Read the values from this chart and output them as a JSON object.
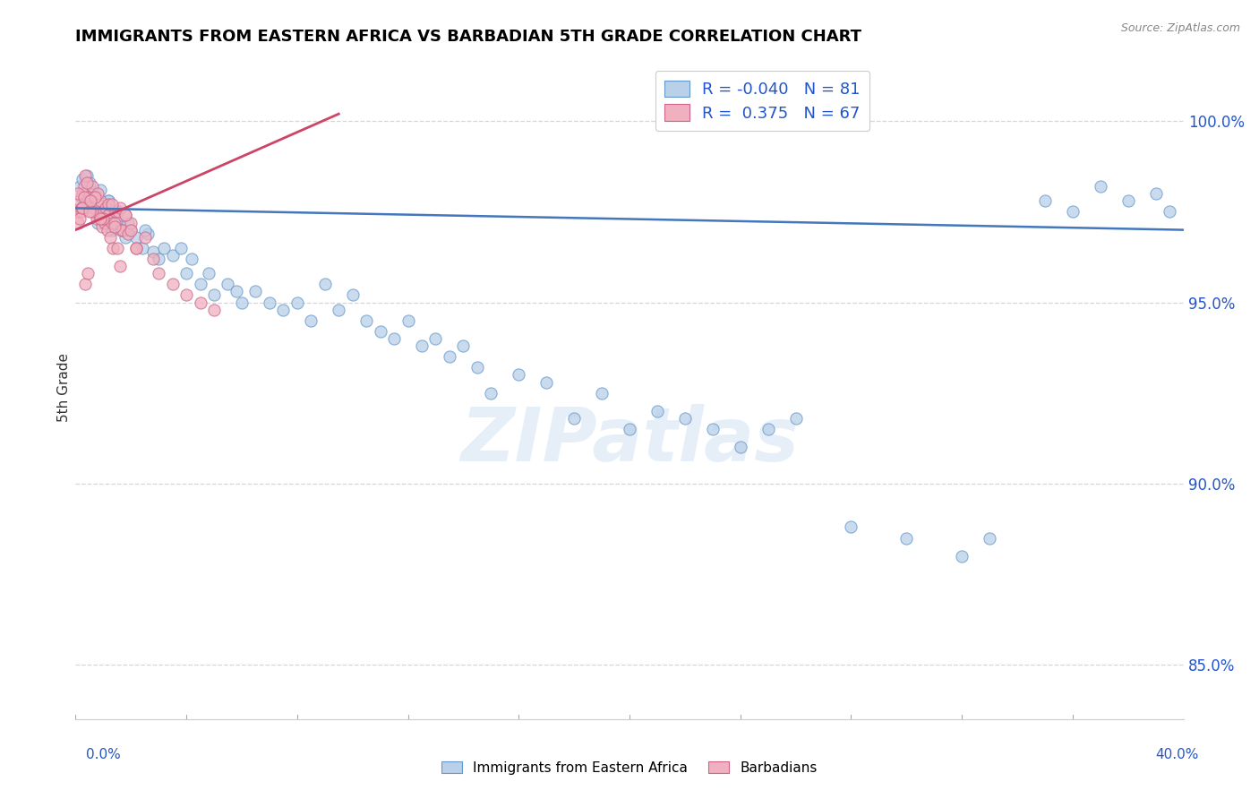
{
  "title": "IMMIGRANTS FROM EASTERN AFRICA VS BARBADIAN 5TH GRADE CORRELATION CHART",
  "source": "Source: ZipAtlas.com",
  "ylabel": "5th Grade",
  "xlim": [
    0.0,
    40.0
  ],
  "ylim": [
    83.5,
    101.8
  ],
  "yticks": [
    85.0,
    90.0,
    95.0,
    100.0
  ],
  "ytick_labels": [
    "85.0%",
    "90.0%",
    "95.0%",
    "100.0%"
  ],
  "r_blue": -0.04,
  "n_blue": 81,
  "r_pink": 0.375,
  "n_pink": 67,
  "blue_fill": "#b8d0e8",
  "blue_edge": "#6699cc",
  "pink_fill": "#f0b0c0",
  "pink_edge": "#cc6688",
  "blue_line_color": "#4477bb",
  "pink_line_color": "#cc4466",
  "legend_r_color": "#2255cc",
  "legend_N_color": "#2255cc",
  "watermark": "ZIPatlas",
  "blue_trend_x": [
    0.0,
    40.0
  ],
  "blue_trend_y": [
    97.6,
    97.0
  ],
  "pink_trend_x": [
    0.0,
    9.5
  ],
  "pink_trend_y": [
    97.0,
    100.2
  ],
  "blue_scatter_x": [
    0.15,
    0.2,
    0.25,
    0.3,
    0.35,
    0.4,
    0.45,
    0.5,
    0.6,
    0.7,
    0.8,
    0.9,
    1.0,
    1.1,
    1.2,
    1.3,
    1.4,
    1.5,
    1.6,
    1.7,
    1.8,
    1.9,
    2.0,
    2.2,
    2.4,
    2.6,
    2.8,
    3.0,
    3.2,
    3.5,
    3.8,
    4.0,
    4.2,
    4.5,
    4.8,
    5.0,
    5.5,
    5.8,
    6.0,
    6.5,
    7.0,
    7.5,
    8.0,
    8.5,
    9.0,
    9.5,
    10.0,
    10.5,
    11.0,
    11.5,
    12.0,
    12.5,
    13.0,
    13.5,
    14.0,
    14.5,
    15.0,
    16.0,
    17.0,
    18.0,
    19.0,
    20.0,
    21.0,
    22.0,
    23.0,
    24.0,
    25.0,
    26.0,
    28.0,
    30.0,
    32.0,
    33.0,
    35.0,
    36.0,
    37.0,
    38.0,
    39.0,
    39.5,
    0.8,
    1.2,
    2.5
  ],
  "blue_scatter_y": [
    98.2,
    97.9,
    98.4,
    98.0,
    97.8,
    98.5,
    97.7,
    98.3,
    97.6,
    98.0,
    97.5,
    98.1,
    97.4,
    97.2,
    97.8,
    97.0,
    97.5,
    97.3,
    97.1,
    97.0,
    96.8,
    97.2,
    97.0,
    96.8,
    96.5,
    96.9,
    96.4,
    96.2,
    96.5,
    96.3,
    96.5,
    95.8,
    96.2,
    95.5,
    95.8,
    95.2,
    95.5,
    95.3,
    95.0,
    95.3,
    95.0,
    94.8,
    95.0,
    94.5,
    95.5,
    94.8,
    95.2,
    94.5,
    94.2,
    94.0,
    94.5,
    93.8,
    94.0,
    93.5,
    93.8,
    93.2,
    92.5,
    93.0,
    92.8,
    91.8,
    92.5,
    91.5,
    92.0,
    91.8,
    91.5,
    91.0,
    91.5,
    91.8,
    88.8,
    88.5,
    88.0,
    88.5,
    97.8,
    97.5,
    98.2,
    97.8,
    98.0,
    97.5,
    97.2,
    97.8,
    97.0
  ],
  "pink_scatter_x": [
    0.05,
    0.1,
    0.15,
    0.2,
    0.25,
    0.3,
    0.35,
    0.4,
    0.45,
    0.5,
    0.55,
    0.6,
    0.65,
    0.7,
    0.75,
    0.8,
    0.85,
    0.9,
    0.95,
    1.0,
    1.05,
    1.1,
    1.15,
    1.2,
    1.25,
    1.3,
    1.35,
    1.4,
    1.45,
    1.5,
    1.55,
    1.6,
    1.65,
    1.7,
    1.8,
    1.9,
    2.0,
    2.2,
    2.5,
    2.8,
    3.0,
    3.5,
    4.0,
    4.5,
    5.0,
    0.1,
    0.2,
    0.3,
    0.4,
    0.6,
    0.8,
    1.0,
    1.2,
    1.4,
    1.6,
    1.8,
    2.0,
    0.15,
    0.25,
    0.7,
    0.9,
    1.3,
    0.5,
    2.2,
    0.35,
    0.45,
    0.55
  ],
  "pink_scatter_y": [
    97.5,
    97.2,
    97.8,
    97.5,
    98.0,
    98.2,
    98.5,
    97.8,
    97.9,
    97.8,
    97.7,
    98.2,
    97.6,
    97.9,
    97.3,
    97.7,
    97.4,
    97.8,
    97.1,
    97.5,
    97.2,
    97.6,
    97.0,
    97.4,
    96.8,
    97.2,
    96.5,
    97.2,
    97.5,
    96.5,
    97.5,
    96.0,
    97.0,
    97.0,
    97.4,
    96.9,
    97.2,
    96.5,
    96.8,
    96.2,
    95.8,
    95.5,
    95.2,
    95.0,
    94.8,
    98.0,
    97.6,
    97.9,
    98.3,
    97.5,
    98.0,
    97.3,
    97.7,
    97.1,
    97.6,
    97.4,
    97.0,
    97.3,
    97.6,
    97.9,
    97.3,
    97.7,
    97.5,
    96.5,
    95.5,
    95.8,
    97.8
  ]
}
